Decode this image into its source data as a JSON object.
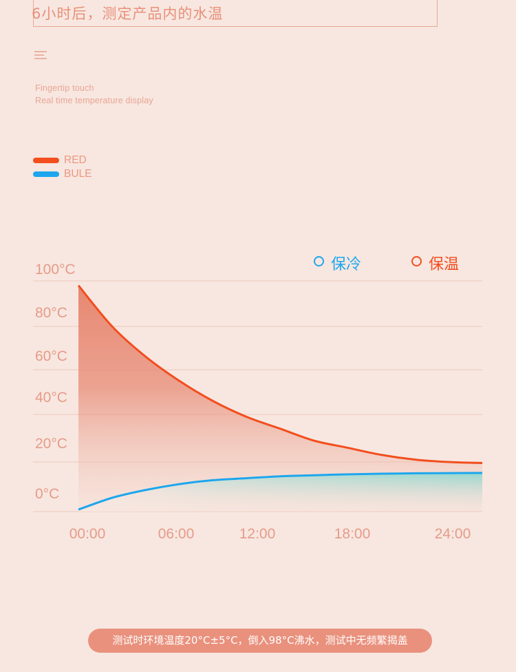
{
  "header": {
    "title": "6小时后，测定产品内的水温"
  },
  "tagline": {
    "line1": "Fingertip touch",
    "line2": "Real time temperature display"
  },
  "color_legend": [
    {
      "label": "RED",
      "color": "#f24e1e"
    },
    {
      "label": "BULE",
      "color": "#1da6ee"
    }
  ],
  "chart_data": {
    "type": "area",
    "x_ticks": [
      "00:00",
      "06:00",
      "12:00",
      "18:00",
      "24:00"
    ],
    "y_ticks": [
      "100°C",
      "80°C",
      "60°C",
      "40°C",
      "20°C",
      "0°C"
    ],
    "ylim": [
      -10,
      100
    ],
    "xlim": [
      0,
      24
    ],
    "grid": true,
    "legend": [
      {
        "label": "保冷",
        "color": "#1da6ee"
      },
      {
        "label": "保温",
        "color": "#f24e1e"
      }
    ],
    "legend_position": "top-right",
    "series": [
      {
        "name": "保温",
        "color": "#f24e1e",
        "x": [
          0,
          2,
          4,
          6,
          8,
          10,
          12,
          14,
          16,
          18,
          20,
          22,
          24
        ],
        "y": [
          98,
          80,
          66,
          55,
          46,
          39,
          34,
          29,
          26,
          23,
          21,
          20,
          19
        ]
      },
      {
        "name": "保冷",
        "color": "#1da6ee",
        "x": [
          0,
          2,
          4,
          6,
          8,
          10,
          12,
          14,
          16,
          18,
          20,
          22,
          24
        ],
        "y": [
          -9,
          -3,
          1,
          4,
          6,
          7,
          8,
          8.5,
          9,
          9.3,
          9.5,
          9.6,
          9.7
        ]
      }
    ]
  },
  "footnote": "测试时环境温度20°C±5°C，倒入98°C沸水，测试中无频繁揭盖"
}
